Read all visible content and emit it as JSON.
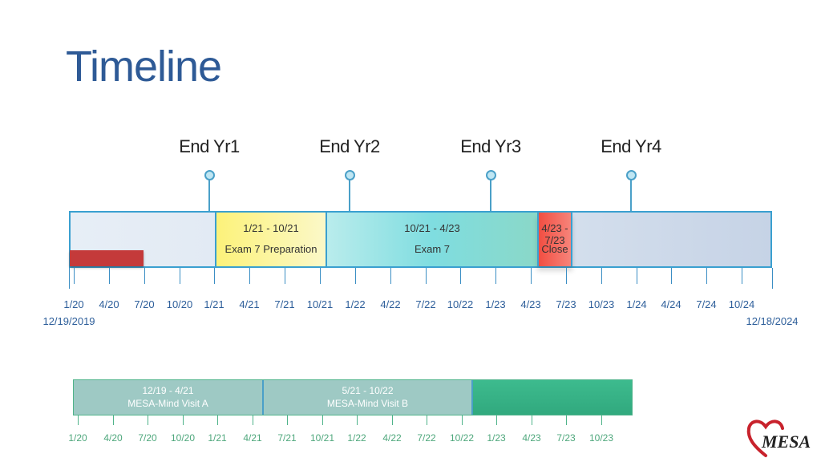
{
  "slide": {
    "title": "Timeline"
  },
  "year_markers": [
    "End Yr1",
    "End Yr2",
    "End Yr3",
    "End Yr4"
  ],
  "main_timeline": {
    "segments": [
      {
        "range": "1/21 - 10/21",
        "label": "Exam 7 Preparation"
      },
      {
        "range": "10/21 - 4/23",
        "label": "Exam 7"
      },
      {
        "range": "4/23 - 7/23",
        "label": "Close"
      }
    ],
    "tick_labels": [
      "1/20",
      "4/20",
      "7/20",
      "10/20",
      "1/21",
      "4/21",
      "7/21",
      "10/21",
      "1/22",
      "4/22",
      "7/22",
      "10/22",
      "1/23",
      "4/23",
      "7/23",
      "10/23",
      "1/24",
      "4/24",
      "7/24",
      "10/24"
    ],
    "start_date": "12/19/2019",
    "end_date": "12/18/2024"
  },
  "mind_timeline": {
    "segments": [
      {
        "range": "12/19 - 4/21",
        "label": "MESA-Mind Visit A"
      },
      {
        "range": "5/21 - 10/22",
        "label": "MESA-Mind Visit B"
      }
    ],
    "tick_labels": [
      "1/20",
      "4/20",
      "7/20",
      "10/20",
      "1/21",
      "4/21",
      "7/21",
      "10/21",
      "1/22",
      "4/22",
      "7/22",
      "10/22",
      "1/23",
      "4/23",
      "7/23",
      "10/23"
    ]
  },
  "logo": {
    "text": "MESA",
    "icon": "heart-icon"
  },
  "colors": {
    "title": "#2e5a96",
    "bar_border": "#3aa0d0",
    "prep": "#fbf6a0",
    "exam": "#7fdde0",
    "close": "#f0564a",
    "mind": "#9ec9c4",
    "mind_extension": "#3dbb8e"
  }
}
